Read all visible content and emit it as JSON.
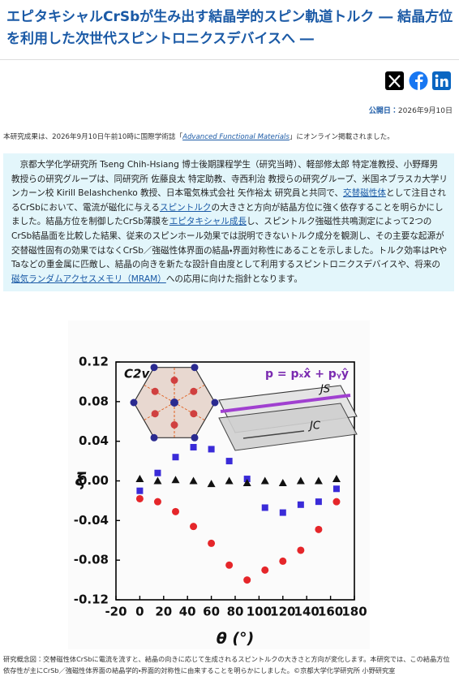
{
  "header": {
    "title": "エピタキシャルCrSbが生み出す結晶学的スピン軌道トルク ― 結晶方位を利用した次世代スピントロニクスデバイスへ ―"
  },
  "date": {
    "label": "公開日：",
    "value": "2026年9月10日"
  },
  "notice": {
    "before": "本研究成果は、2026年9月10日午前10時に国際学術誌「",
    "link": "Advanced Functional Materials",
    "after": "」にオンライン掲載されました。"
  },
  "summary": {
    "segments": [
      {
        "text": "京都大学化学研究所 Tseng Chih-Hsiang 博士後期課程学生（研究当時）、軽部修太郎 特定准教授、小野輝男 教授らの研究グループは、同研究所 佐藤良太 特定助教、寺西利治 教授らの研究グループ、米国ネブラスカ大学リンカーン校 Kirill Belashchenko 教授、日本電気株式会社 矢作裕太 研究員と共同で、"
      },
      {
        "text": "交替磁性体",
        "link": true
      },
      {
        "text": "として注目されるCrSbにおいて、電流が磁化に与える"
      },
      {
        "text": "スピントルク",
        "link": true
      },
      {
        "text": "の大きさと方向が結晶方位に強く依存することを明らかにしました。結晶方位を制御したCrSb薄膜を"
      },
      {
        "text": "エピタキシャル成長",
        "link": true
      },
      {
        "text": "し、スピントルク強磁性共鳴測定によって2つのCrSb結晶面を比較した結果、従来のスピンホール効果では説明できないトルク成分を観測し、その主要な起源が交替磁性固有の効果ではなくCrSb／強磁性体界面の結晶・界面対称性にあることを示しました。トルク効率はPtやTaなどの重金属に匹敵し、結晶の向きを新たな設計自由度として利用するスピントロニクスデバイスや、将来の"
      },
      {
        "text": "磁気ランダムアクセスメモリ（MRAM）",
        "link": true
      },
      {
        "text": "への応用に向けた指針となります。"
      }
    ]
  },
  "chart_data": {
    "type": "scatter",
    "x_label": "θ (°)",
    "y_label": "ξ",
    "insets": {
      "symmetry": "C2v",
      "polarization": "p = pₓx̂ + pᵧŷ",
      "spin_current": "JS",
      "charge_current": "JC"
    },
    "x": [
      0,
      15,
      30,
      45,
      60,
      75,
      90,
      105,
      120,
      135,
      150,
      165
    ],
    "series": [
      {
        "name": "red",
        "color": "#e5262a",
        "marker": "circle",
        "values": [
          -0.018,
          -0.021,
          -0.031,
          -0.046,
          -0.063,
          -0.085,
          -0.1,
          -0.09,
          -0.081,
          -0.07,
          -0.049,
          -0.021
        ]
      },
      {
        "name": "blue",
        "color": "#3a2bd8",
        "marker": "square",
        "values": [
          -0.01,
          0.008,
          0.024,
          0.034,
          0.032,
          0.02,
          0.002,
          -0.027,
          -0.032,
          -0.024,
          -0.021,
          -0.008
        ]
      },
      {
        "name": "black",
        "color": "#111111",
        "marker": "triangle",
        "values": [
          0.002,
          0.0,
          0.001,
          0.0,
          -0.003,
          0.0,
          -0.002,
          0.0,
          -0.002,
          0.0,
          0.0,
          0.002
        ]
      }
    ],
    "xlim": [
      -20,
      180
    ],
    "xticks": [
      -20,
      0,
      20,
      40,
      60,
      80,
      100,
      120,
      140,
      160,
      180
    ],
    "ylim": [
      -0.12,
      0.12
    ],
    "yticks": [
      -0.12,
      -0.08,
      -0.04,
      {
        "value": 0,
        "label": "0.00"
      },
      0.04,
      0.08,
      0.12
    ]
  },
  "caption": "研究概念図：交替磁性体CrSbに電流を流すと、結晶の向きに応じて生成されるスピントルクの大きさと方向が変化します。本研究では、この結晶方位依存性が主にCrSb／強磁性体界面の結晶学的・界面的対称性に由来することを明らかにしました。©京都大学化学研究所 小野研究室"
}
